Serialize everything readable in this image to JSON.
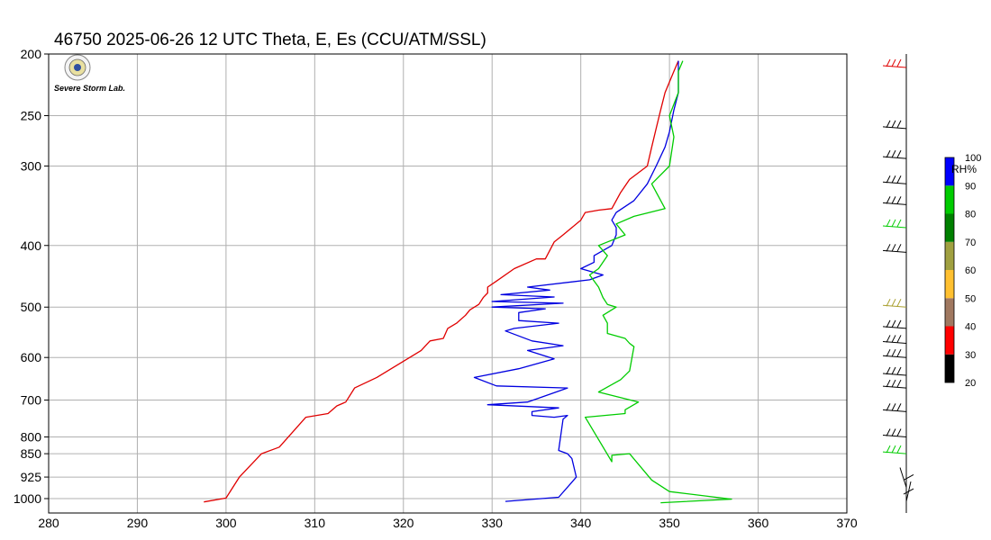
{
  "chart_data": {
    "type": "line",
    "title": "46750  2025-06-26 12 UTC  Theta, E, Es (CCU/ATM/SSL)",
    "logo_text": "Severe Storm Lab.",
    "xlim": [
      280,
      370
    ],
    "xticks": [
      280,
      290,
      300,
      310,
      320,
      330,
      340,
      350,
      360,
      370
    ],
    "ylabel_ticks": [
      200,
      250,
      300,
      400,
      500,
      600,
      700,
      800,
      850,
      925,
      1000
    ],
    "y_scale": "log-pressure",
    "grid": true,
    "series": [
      {
        "color": "#e00000",
        "points": [
          [
            297.5,
            1012
          ],
          [
            300,
            998
          ],
          [
            301.5,
            925
          ],
          [
            304,
            850
          ],
          [
            305.5,
            835
          ],
          [
            306,
            830
          ],
          [
            309,
            745
          ],
          [
            311.5,
            735
          ],
          [
            312.5,
            715
          ],
          [
            313.5,
            705
          ],
          [
            314.5,
            670
          ],
          [
            317,
            645
          ],
          [
            322,
            585
          ],
          [
            322.5,
            575
          ],
          [
            323,
            565
          ],
          [
            324.5,
            560
          ],
          [
            325,
            540
          ],
          [
            326,
            530
          ],
          [
            327,
            515
          ],
          [
            327.5,
            505
          ],
          [
            328.5,
            495
          ],
          [
            329,
            483
          ],
          [
            329.5,
            475
          ],
          [
            329.5,
            465
          ],
          [
            330.5,
            455
          ],
          [
            332.5,
            435
          ],
          [
            335,
            420
          ],
          [
            336,
            420
          ],
          [
            337,
            395
          ],
          [
            338,
            385
          ],
          [
            340,
            365
          ],
          [
            340.5,
            355
          ],
          [
            342,
            352
          ],
          [
            343.5,
            350
          ],
          [
            344.5,
            330
          ],
          [
            345.5,
            315
          ],
          [
            347.5,
            300
          ],
          [
            348,
            280
          ],
          [
            348.5,
            262
          ],
          [
            349,
            245
          ],
          [
            349.5,
            230
          ],
          [
            350.5,
            213
          ],
          [
            351,
            205
          ]
        ]
      },
      {
        "color": "#0000e0",
        "points": [
          [
            331.5,
            1010
          ],
          [
            337.5,
            995
          ],
          [
            339.5,
            925
          ],
          [
            339,
            865
          ],
          [
            338.5,
            850
          ],
          [
            337.5,
            840
          ],
          [
            338,
            750
          ],
          [
            338.5,
            740
          ],
          [
            337,
            745
          ],
          [
            334.5,
            740
          ],
          [
            334.5,
            730
          ],
          [
            337.5,
            720
          ],
          [
            329.5,
            712
          ],
          [
            334,
            705
          ],
          [
            338.5,
            670
          ],
          [
            330.5,
            665
          ],
          [
            328,
            645
          ],
          [
            333,
            625
          ],
          [
            337,
            603
          ],
          [
            334,
            585
          ],
          [
            338,
            575
          ],
          [
            334.5,
            565
          ],
          [
            331.5,
            545
          ],
          [
            332.5,
            540
          ],
          [
            337.5,
            530
          ],
          [
            333,
            525
          ],
          [
            333,
            510
          ],
          [
            336,
            503
          ],
          [
            330,
            500
          ],
          [
            338,
            493
          ],
          [
            330,
            490
          ],
          [
            337,
            482
          ],
          [
            331,
            478
          ],
          [
            336.5,
            470
          ],
          [
            334,
            465
          ],
          [
            341,
            453
          ],
          [
            342.5,
            445
          ],
          [
            340,
            435
          ],
          [
            341.5,
            425
          ],
          [
            341.5,
            415
          ],
          [
            343.5,
            400
          ],
          [
            344,
            385
          ],
          [
            344,
            375
          ],
          [
            343.5,
            365
          ],
          [
            344,
            355
          ],
          [
            346,
            340
          ],
          [
            347.5,
            320
          ],
          [
            348.5,
            300
          ],
          [
            349.5,
            280
          ],
          [
            350,
            265
          ],
          [
            350.5,
            245
          ],
          [
            351,
            230
          ],
          [
            351,
            213
          ],
          [
            351,
            205
          ]
        ]
      },
      {
        "color": "#00cc00",
        "points": [
          [
            349,
            1015
          ],
          [
            357,
            1002
          ],
          [
            350,
            975
          ],
          [
            348,
            935
          ],
          [
            345.5,
            850
          ],
          [
            343.5,
            855
          ],
          [
            343.5,
            875
          ],
          [
            340.5,
            745
          ],
          [
            345,
            735
          ],
          [
            345,
            725
          ],
          [
            346.5,
            705
          ],
          [
            342,
            680
          ],
          [
            344.5,
            650
          ],
          [
            345.5,
            630
          ],
          [
            346,
            577
          ],
          [
            345.5,
            570
          ],
          [
            345,
            560
          ],
          [
            343,
            550
          ],
          [
            343,
            530
          ],
          [
            342.5,
            515
          ],
          [
            344,
            500
          ],
          [
            343,
            495
          ],
          [
            342.5,
            483
          ],
          [
            342,
            465
          ],
          [
            341,
            445
          ],
          [
            342,
            435
          ],
          [
            343,
            415
          ],
          [
            342,
            400
          ],
          [
            345,
            385
          ],
          [
            344,
            370
          ],
          [
            346,
            360
          ],
          [
            349.5,
            350
          ],
          [
            348,
            320
          ],
          [
            350,
            300
          ],
          [
            350.5,
            270
          ],
          [
            350,
            250
          ],
          [
            351,
            230
          ],
          [
            351,
            213
          ],
          [
            351.5,
            205
          ]
        ]
      }
    ],
    "wind_barbs": [
      {
        "p": 210,
        "color": "#e00000"
      },
      {
        "p": 262,
        "color": "#000000"
      },
      {
        "p": 292,
        "color": "#000000"
      },
      {
        "p": 320,
        "color": "#000000"
      },
      {
        "p": 345,
        "color": "#000000"
      },
      {
        "p": 375,
        "color": "#00cc00"
      },
      {
        "p": 410,
        "color": "#000000"
      },
      {
        "p": 500,
        "color": "#aaa030"
      },
      {
        "p": 540,
        "color": "#000000"
      },
      {
        "p": 570,
        "color": "#000000"
      },
      {
        "p": 600,
        "color": "#000000"
      },
      {
        "p": 640,
        "color": "#000000"
      },
      {
        "p": 670,
        "color": "#000000"
      },
      {
        "p": 730,
        "color": "#000000"
      },
      {
        "p": 800,
        "color": "#000000"
      },
      {
        "p": 850,
        "color": "#00cc00"
      },
      {
        "p": 960,
        "color": "#000000"
      },
      {
        "p": 1010,
        "color": "#000000"
      }
    ],
    "rh_colorbar": {
      "label": "RH%",
      "ticks": [
        20,
        30,
        40,
        50,
        60,
        70,
        80,
        90,
        100
      ],
      "colors": [
        "#000000",
        "#ff0000",
        "#a07860",
        "#ffc030",
        "#a0a040",
        "#008000",
        "#00cc00",
        "#0000ff"
      ]
    }
  }
}
